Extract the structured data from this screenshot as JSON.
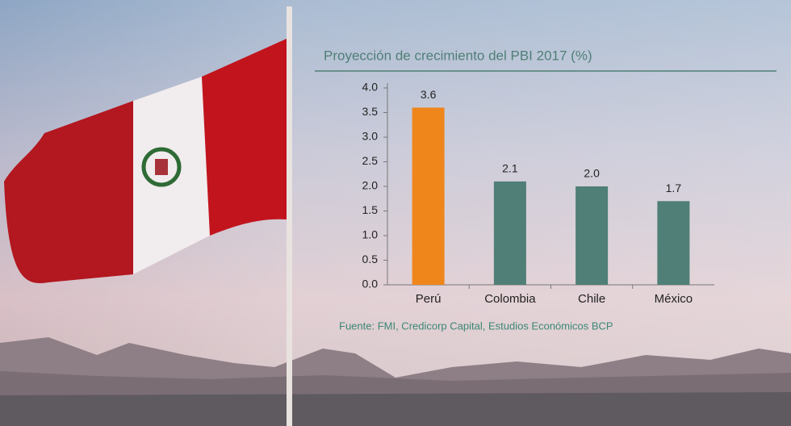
{
  "chart_data": {
    "type": "bar",
    "title": "Proyección de crecimiento del PBI 2017 (%)",
    "categories": [
      "Perú",
      "Colombia",
      "Chile",
      "México"
    ],
    "values": [
      3.6,
      2.1,
      2.0,
      1.7
    ],
    "value_labels": [
      "3.6",
      "2.1",
      "2.0",
      "1.7"
    ],
    "colors": [
      "#ef861c",
      "#4f7f76",
      "#4f7f76",
      "#4f7f76"
    ],
    "ylim": [
      0,
      4
    ],
    "yticks": [
      {
        "value": 0,
        "label": "0.0"
      },
      0.5,
      {
        "value": 1,
        "label": "1.0"
      },
      1.5,
      {
        "value": 2,
        "label": "2.0"
      },
      2.5,
      {
        "value": 3,
        "label": "3.0"
      },
      3.5,
      {
        "value": 4,
        "label": "4.0"
      }
    ],
    "grid": false,
    "source": "Fuente: FMI, Credicorp Capital, Estudios Económicos BCP"
  }
}
